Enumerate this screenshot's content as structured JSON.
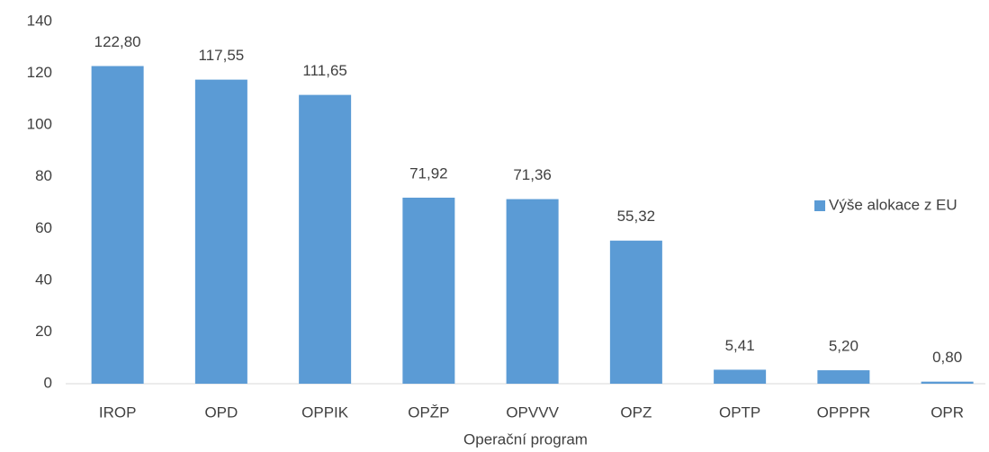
{
  "chart_data": {
    "type": "bar",
    "x_label": "Operační program",
    "categories": [
      "IROP",
      "OPD",
      "OPPIK",
      "OPŽP",
      "OPVVV",
      "OPZ",
      "OPTP",
      "OPPPR",
      "OPR"
    ],
    "series": [
      {
        "name": "Výše alokace z EU",
        "color": "#5b9bd5",
        "values": [
          122.8,
          117.55,
          111.65,
          71.92,
          71.36,
          55.32,
          5.41,
          5.2,
          0.8
        ],
        "value_labels": [
          "122,80",
          "117,55",
          "111,65",
          "71,92",
          "71,36",
          "55,32",
          "5,41",
          "5,20",
          "0,80"
        ]
      }
    ],
    "ylim": [
      0,
      140
    ],
    "yticks": [
      0,
      20,
      40,
      60,
      80,
      100,
      120,
      140
    ],
    "grid": false,
    "legend": "right"
  }
}
